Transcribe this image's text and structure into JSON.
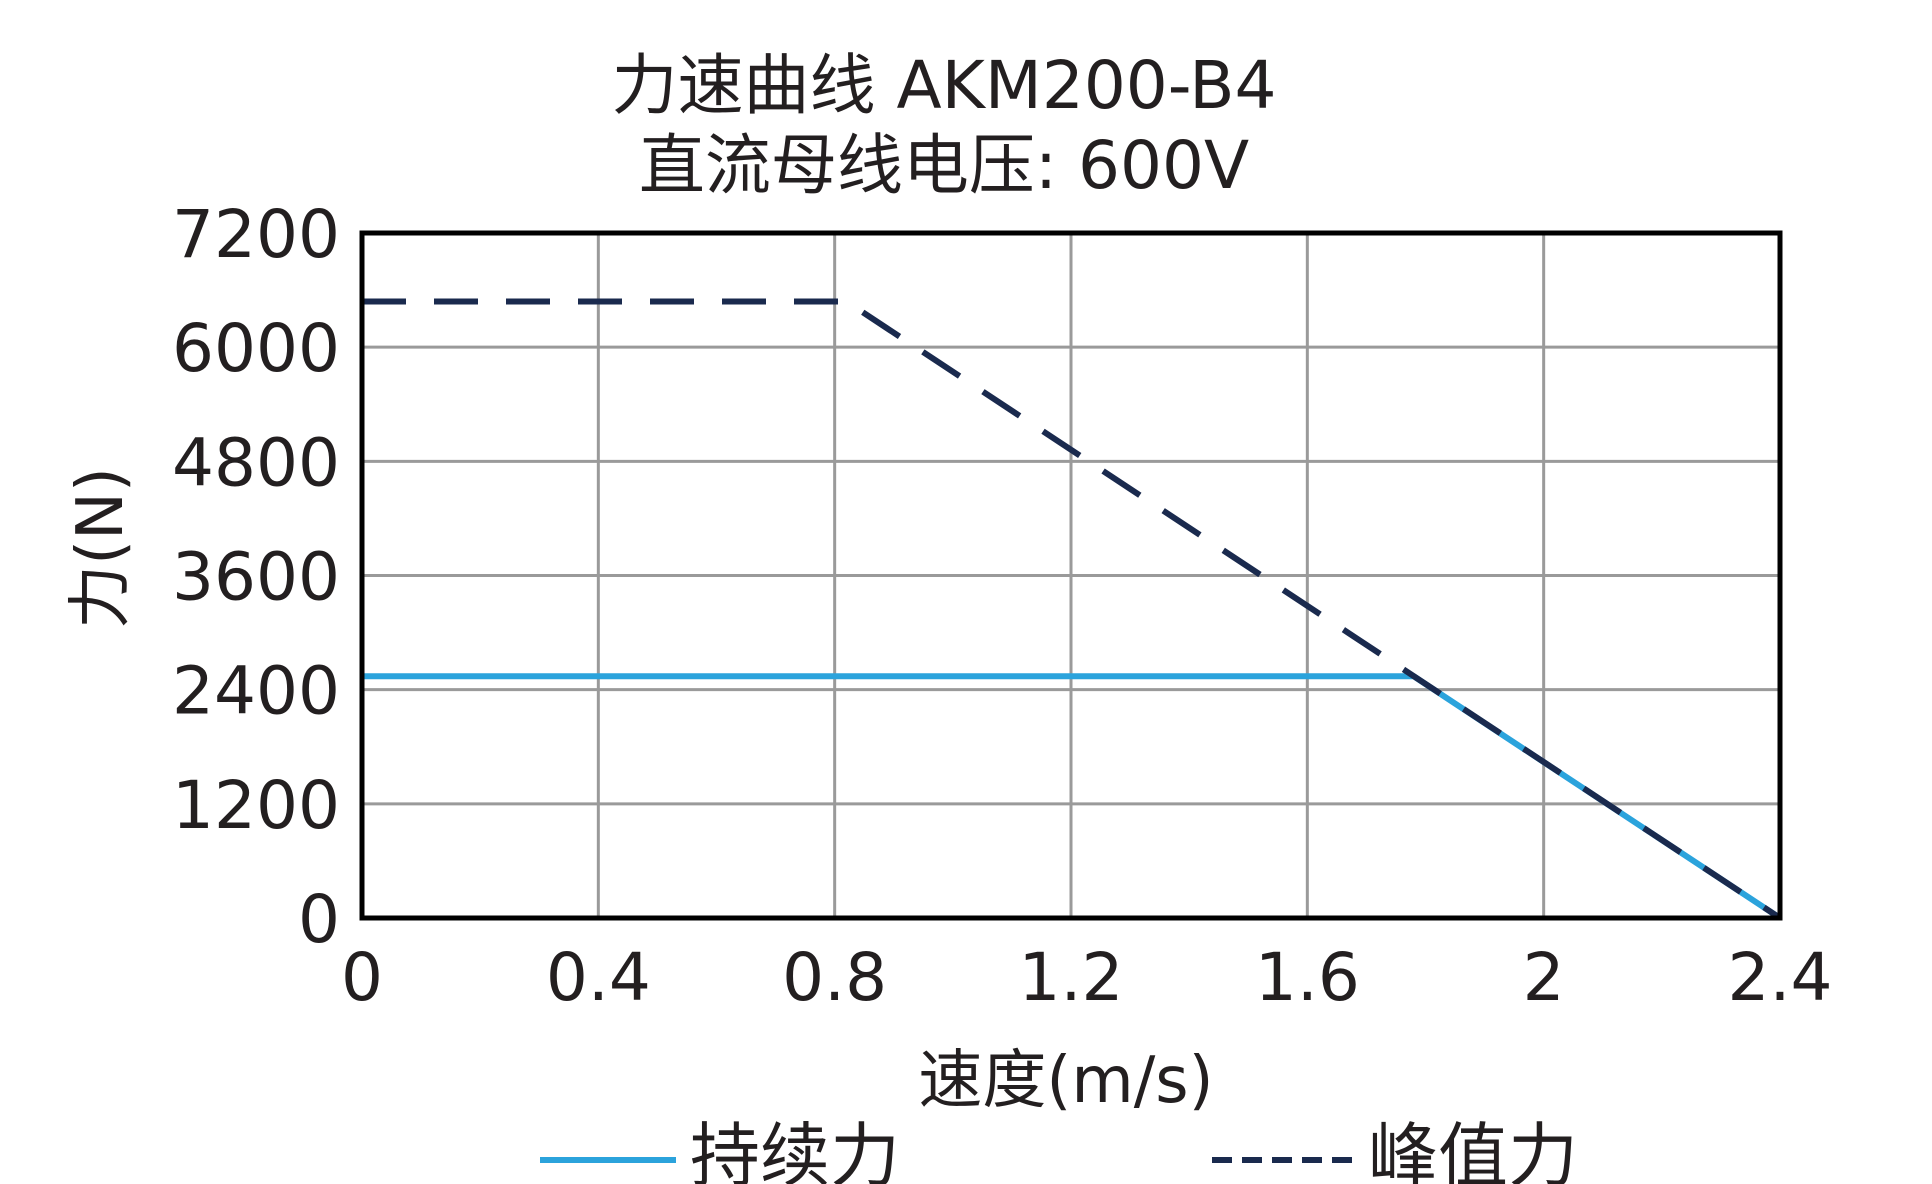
{
  "chart_data": {
    "type": "line",
    "title": "力速曲线 AKM200-B4",
    "subtitle": "直流母线电压: 600V",
    "xlabel": "速度(m/s)",
    "ylabel": "力(N)",
    "xlim": [
      0,
      2.4
    ],
    "ylim": [
      0,
      7200
    ],
    "xticks": [
      "0",
      "0.4",
      "0.8",
      "1.2",
      "1.6",
      "2",
      "2.4"
    ],
    "yticks": [
      "7200",
      "6000",
      "4800",
      "3600",
      "2400",
      "1200",
      "0"
    ],
    "xtick_values": [
      0,
      0.4,
      0.8,
      1.2,
      1.6,
      2.0,
      2.4
    ],
    "ytick_values": [
      7200,
      6000,
      4800,
      3600,
      2400,
      1200,
      0
    ],
    "grid": true,
    "legend_position": "bottom",
    "series": [
      {
        "name": "持续力",
        "color": "#2ba3dc",
        "style": "solid",
        "points": [
          [
            0,
            2540
          ],
          [
            1.78,
            2540
          ],
          [
            2.4,
            0
          ]
        ]
      },
      {
        "name": "峰值力",
        "color": "#1a2a4e",
        "style": "dashed",
        "points": [
          [
            0,
            6480
          ],
          [
            0.82,
            6480
          ],
          [
            2.4,
            0
          ]
        ]
      }
    ]
  }
}
